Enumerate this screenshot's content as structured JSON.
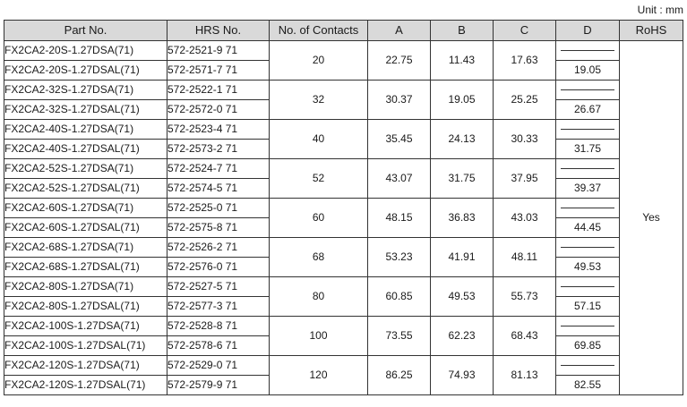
{
  "unit_label": "Unit : mm",
  "headers": {
    "part_no": "Part No.",
    "hrs_no": "HRS No.",
    "contacts": "No. of Contacts",
    "a": "A",
    "b": "B",
    "c": "C",
    "d": "D",
    "rohs": "RoHS"
  },
  "rohs_value": "Yes",
  "groups": [
    {
      "contacts": "20",
      "a": "22.75",
      "b": "11.43",
      "c": "17.63",
      "d": "19.05",
      "rows": [
        {
          "part": "FX2CA2-20S-1.27DSA(71)",
          "hrs": "572-2521-9 71"
        },
        {
          "part": "FX2CA2-20S-1.27DSAL(71)",
          "hrs": "572-2571-7 71"
        }
      ]
    },
    {
      "contacts": "32",
      "a": "30.37",
      "b": "19.05",
      "c": "25.25",
      "d": "26.67",
      "rows": [
        {
          "part": "FX2CA2-32S-1.27DSA(71)",
          "hrs": "572-2522-1 71"
        },
        {
          "part": "FX2CA2-32S-1.27DSAL(71)",
          "hrs": "572-2572-0 71"
        }
      ]
    },
    {
      "contacts": "40",
      "a": "35.45",
      "b": "24.13",
      "c": "30.33",
      "d": "31.75",
      "rows": [
        {
          "part": "FX2CA2-40S-1.27DSA(71)",
          "hrs": "572-2523-4 71"
        },
        {
          "part": "FX2CA2-40S-1.27DSAL(71)",
          "hrs": "572-2573-2 71"
        }
      ]
    },
    {
      "contacts": "52",
      "a": "43.07",
      "b": "31.75",
      "c": "37.95",
      "d": "39.37",
      "rows": [
        {
          "part": "FX2CA2-52S-1.27DSA(71)",
          "hrs": "572-2524-7 71"
        },
        {
          "part": "FX2CA2-52S-1.27DSAL(71)",
          "hrs": "572-2574-5 71"
        }
      ]
    },
    {
      "contacts": "60",
      "a": "48.15",
      "b": "36.83",
      "c": "43.03",
      "d": "44.45",
      "rows": [
        {
          "part": "FX2CA2-60S-1.27DSA(71)",
          "hrs": "572-2525-0 71"
        },
        {
          "part": "FX2CA2-60S-1.27DSAL(71)",
          "hrs": "572-2575-8 71"
        }
      ]
    },
    {
      "contacts": "68",
      "a": "53.23",
      "b": "41.91",
      "c": "48.11",
      "d": "49.53",
      "rows": [
        {
          "part": "FX2CA2-68S-1.27DSA(71)",
          "hrs": "572-2526-2 71"
        },
        {
          "part": "FX2CA2-68S-1.27DSAL(71)",
          "hrs": "572-2576-0 71"
        }
      ]
    },
    {
      "contacts": "80",
      "a": "60.85",
      "b": "49.53",
      "c": "55.73",
      "d": "57.15",
      "rows": [
        {
          "part": "FX2CA2-80S-1.27DSA(71)",
          "hrs": "572-2527-5 71"
        },
        {
          "part": "FX2CA2-80S-1.27DSAL(71)",
          "hrs": "572-2577-3 71"
        }
      ]
    },
    {
      "contacts": "100",
      "a": "73.55",
      "b": "62.23",
      "c": "68.43",
      "d": "69.85",
      "rows": [
        {
          "part": "FX2CA2-100S-1.27DSA(71)",
          "hrs": "572-2528-8 71"
        },
        {
          "part": "FX2CA2-100S-1.27DSAL(71)",
          "hrs": "572-2578-6 71"
        }
      ]
    },
    {
      "contacts": "120",
      "a": "86.25",
      "b": "74.93",
      "c": "81.13",
      "d": "82.55",
      "rows": [
        {
          "part": "FX2CA2-120S-1.27DSA(71)",
          "hrs": "572-2529-0 71"
        },
        {
          "part": "FX2CA2-120S-1.27DSAL(71)",
          "hrs": "572-2579-9 71"
        }
      ]
    }
  ]
}
